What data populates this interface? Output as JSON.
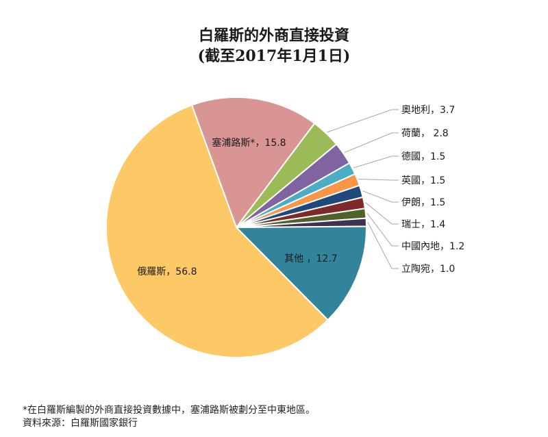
{
  "chart_data": {
    "type": "pie",
    "title": "白羅斯的外商直接投資",
    "subtitle": "(截至2017年1月1日)",
    "slices": [
      {
        "label": "塞浦路斯*",
        "value": 15.8,
        "text": "塞浦路斯*，15.8",
        "color": "#d99594"
      },
      {
        "label": "奧地利",
        "value": 3.7,
        "text": "奧地利，3.7",
        "color": "#9bbb59"
      },
      {
        "label": "荷蘭",
        "value": 2.8,
        "text": "荷蘭，  2.8",
        "color": "#8064a2"
      },
      {
        "label": "德國",
        "value": 1.5,
        "text": "德國，1.5",
        "color": "#4bacc6"
      },
      {
        "label": "英國",
        "value": 1.5,
        "text": "英國，1.5",
        "color": "#f79646"
      },
      {
        "label": "伊朗",
        "value": 1.5,
        "text": "伊朗，1.5",
        "color": "#1f497d"
      },
      {
        "label": "瑞士",
        "value": 1.4,
        "text": "瑞士，1.4",
        "color": "#7f2a2a"
      },
      {
        "label": "中國內地",
        "value": 1.2,
        "text": "中國內地，1.2",
        "color": "#4f6228"
      },
      {
        "label": "立陶宛",
        "value": 1.0,
        "text": "立陶宛，1.0",
        "color": "#403152"
      },
      {
        "label": "其他",
        "value": 12.7,
        "text": "其他  ，12.7",
        "color": "#31849b"
      },
      {
        "label": "俄羅斯",
        "value": 56.8,
        "text": "俄羅斯，56.8",
        "color": "#fdc966"
      }
    ]
  },
  "footnote": "*在白羅斯編製的外商直接投資數據中，塞浦路斯被劃分至中東地區。",
  "source": "資料來源：白羅斯國家銀行"
}
